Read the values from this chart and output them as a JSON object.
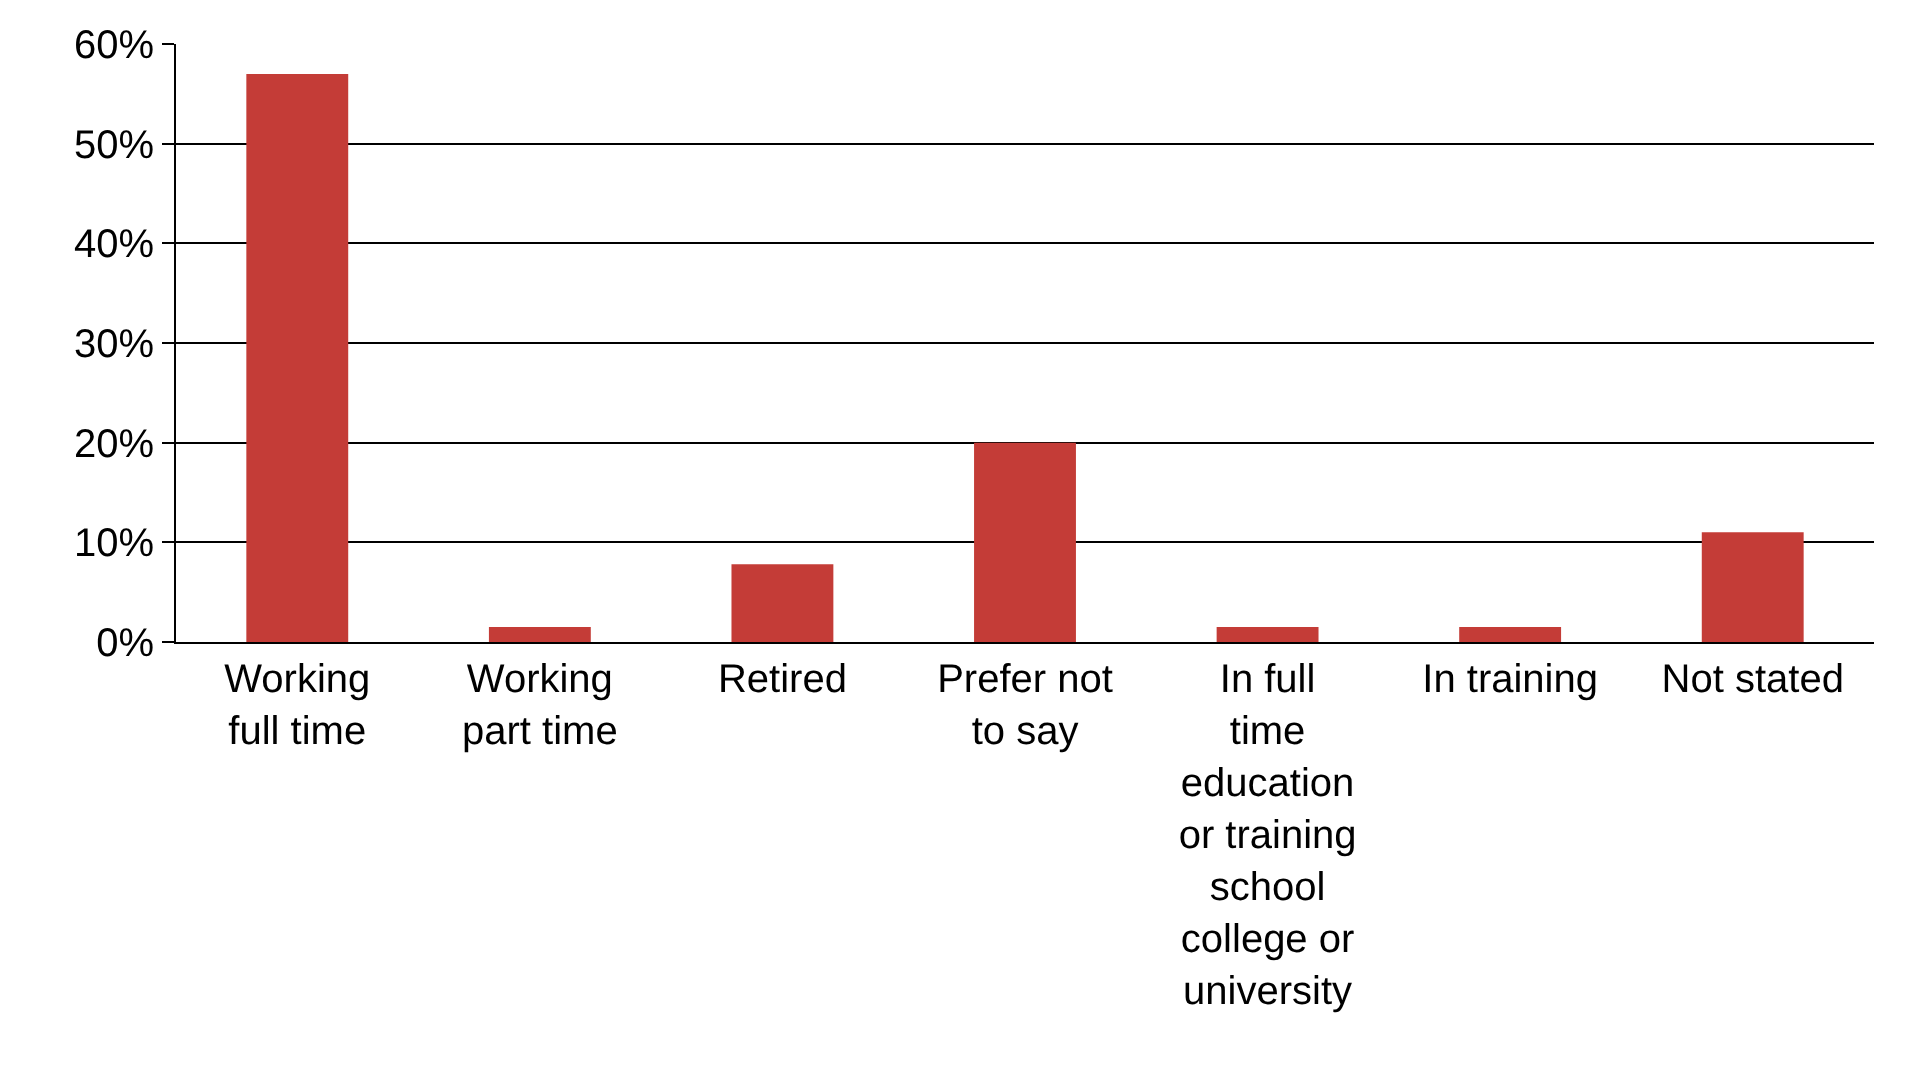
{
  "chart_data": {
    "type": "bar",
    "categories": [
      "Working full time",
      "Working part time",
      "Retired",
      "Prefer not to say",
      "In full time education or training school college or university",
      "In training",
      "Not stated"
    ],
    "values": [
      57,
      1.5,
      7.8,
      20,
      1.5,
      1.5,
      11
    ],
    "color": "#c43c37",
    "ylim": [
      0,
      60
    ],
    "yticks": [
      {
        "value": 0,
        "label": "0%"
      },
      {
        "value": 10,
        "label": "10%"
      },
      {
        "value": 20,
        "label": "20%"
      },
      {
        "value": 30,
        "label": "30%"
      },
      {
        "value": 40,
        "label": "40%"
      },
      {
        "value": 50,
        "label": "50%"
      },
      {
        "value": 60,
        "label": "60%"
      }
    ],
    "grid": "y"
  }
}
